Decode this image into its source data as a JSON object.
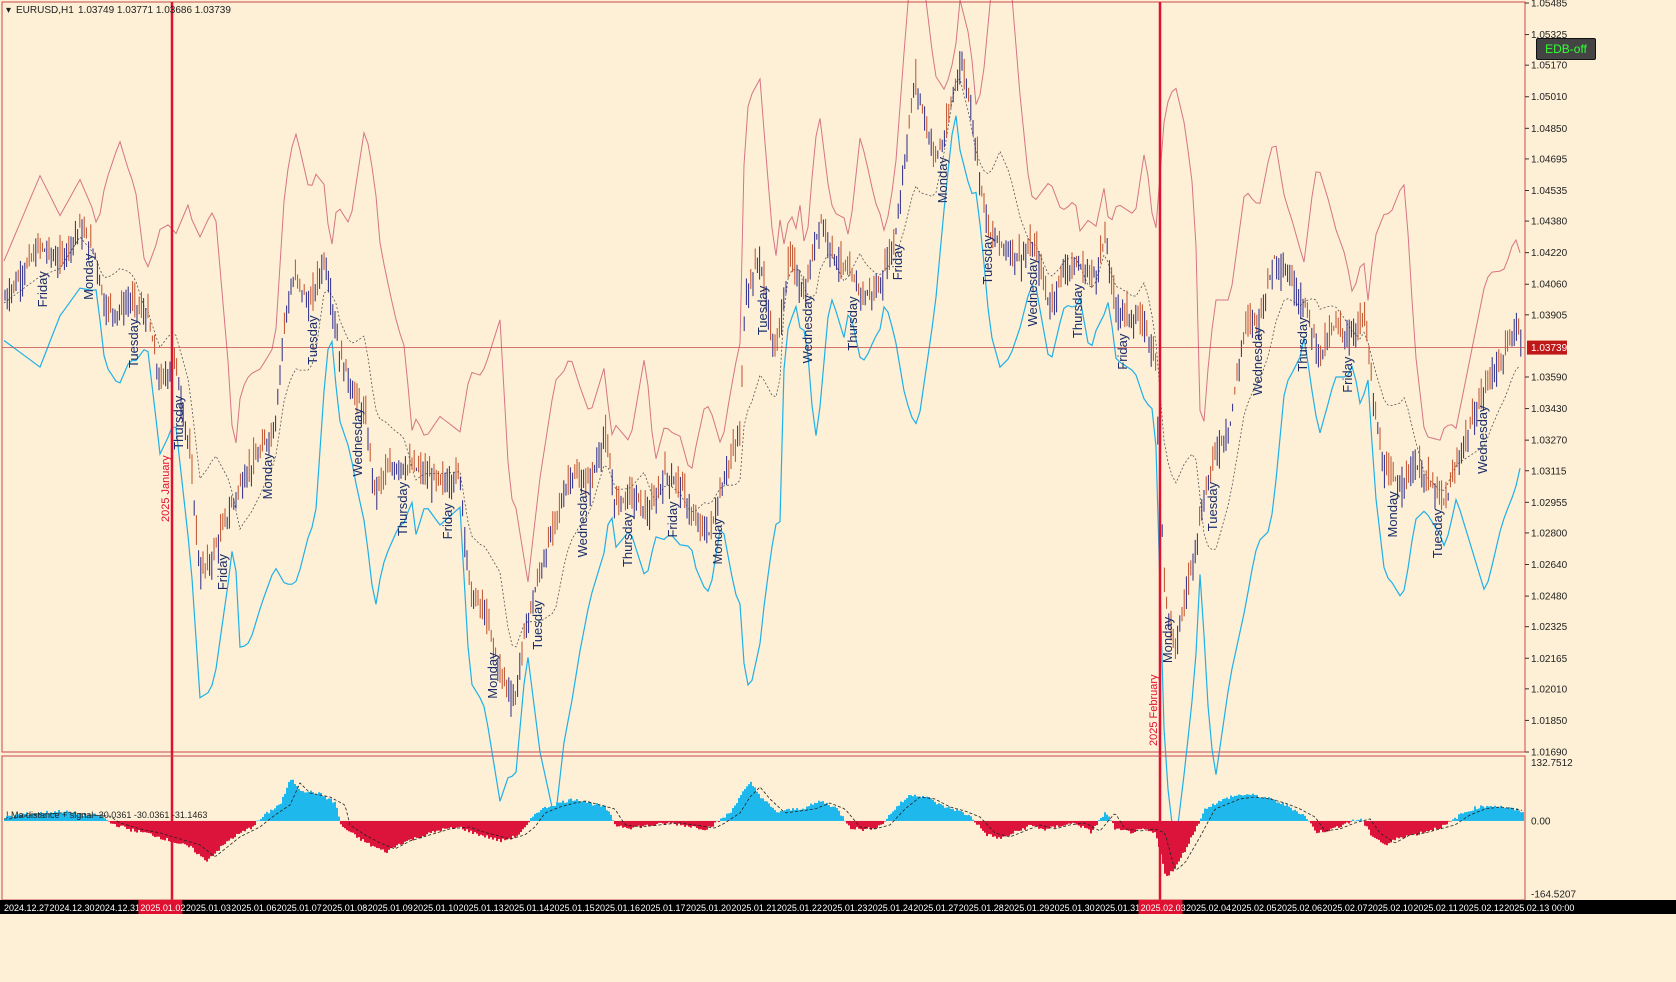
{
  "window": {
    "symbol_title": "EURUSD,H1",
    "ohlc": "1.03749 1.03771 1.03686 1.03739"
  },
  "button": {
    "label": "EDB-off"
  },
  "colors": {
    "background": "#fdf0d6",
    "grid_border": "#c84a4a",
    "bull_candle": "#2a2a8a",
    "bear_candle": "#c0502a",
    "upper_band": "#c44060",
    "lower_band": "#1fb0e8",
    "hist_positive": "#1fb8ec",
    "hist_negative": "#dc143c",
    "separator": "#e01030",
    "day_label": "#1a2d6a",
    "price_marker_bg": "#c01818",
    "axis_bg": "#000000",
    "axis_text": "#ffffff"
  },
  "chart_data": [
    {
      "type": "candlestick",
      "title": "EURUSD,H1 1.03749 1.03771 1.03686 1.03739",
      "y_ticks": [
        "1.05485",
        "1.05325",
        "1.05170",
        "1.05010",
        "1.04850",
        "1.04695",
        "1.04535",
        "1.04380",
        "1.04220",
        "1.04060",
        "1.03905",
        "1.03739",
        "1.03590",
        "1.03430",
        "1.03270",
        "1.03115",
        "1.02955",
        "1.02800",
        "1.02640",
        "1.02480",
        "1.02325",
        "1.02165",
        "1.02010",
        "1.01850",
        "1.01690"
      ],
      "ylim": [
        1.0169,
        1.0549
      ],
      "current_price": "1.03739",
      "x_range": [
        "2024.12.27",
        "2025.02.13 00:00"
      ],
      "close_path_anchors": [
        [
          0,
          1.0395
        ],
        [
          20,
          1.041
        ],
        [
          40,
          1.0425
        ],
        [
          60,
          1.0418
        ],
        [
          80,
          1.0435
        ],
        [
          95,
          1.0422
        ],
        [
          105,
          1.0395
        ],
        [
          118,
          1.0392
        ],
        [
          130,
          1.0398
        ],
        [
          148,
          1.039
        ],
        [
          160,
          1.0355
        ],
        [
          175,
          1.0368
        ],
        [
          190,
          1.032
        ],
        [
          200,
          1.026
        ],
        [
          210,
          1.0265
        ],
        [
          225,
          1.0285
        ],
        [
          245,
          1.031
        ],
        [
          260,
          1.032
        ],
        [
          275,
          1.0335
        ],
        [
          285,
          1.039
        ],
        [
          295,
          1.041
        ],
        [
          310,
          1.0395
        ],
        [
          325,
          1.042
        ],
        [
          340,
          1.037
        ],
        [
          355,
          1.035
        ],
        [
          365,
          1.034
        ],
        [
          375,
          1.03
        ],
        [
          385,
          1.031
        ],
        [
          400,
          1.0315
        ],
        [
          420,
          1.0312
        ],
        [
          440,
          1.0305
        ],
        [
          460,
          1.031
        ],
        [
          470,
          1.025
        ],
        [
          485,
          1.024
        ],
        [
          500,
          1.021
        ],
        [
          515,
          1.0195
        ],
        [
          525,
          1.023
        ],
        [
          540,
          1.026
        ],
        [
          555,
          1.0285
        ],
        [
          570,
          1.031
        ],
        [
          590,
          1.0305
        ],
        [
          605,
          1.033
        ],
        [
          615,
          1.0295
        ],
        [
          630,
          1.03
        ],
        [
          650,
          1.029
        ],
        [
          665,
          1.031
        ],
        [
          680,
          1.0305
        ],
        [
          695,
          1.0285
        ],
        [
          710,
          1.028
        ],
        [
          725,
          1.031
        ],
        [
          740,
          1.033
        ],
        [
          745,
          1.04
        ],
        [
          760,
          1.042
        ],
        [
          775,
          1.037
        ],
        [
          790,
          1.042
        ],
        [
          805,
          1.04
        ],
        [
          820,
          1.044
        ],
        [
          835,
          1.042
        ],
        [
          850,
          1.041
        ],
        [
          865,
          1.04
        ],
        [
          880,
          1.0405
        ],
        [
          895,
          1.043
        ],
        [
          905,
          1.047
        ],
        [
          915,
          1.051
        ],
        [
          925,
          1.049
        ],
        [
          935,
          1.047
        ],
        [
          945,
          1.048
        ],
        [
          960,
          1.052
        ],
        [
          970,
          1.05
        ],
        [
          980,
          1.046
        ],
        [
          990,
          1.043
        ],
        [
          1005,
          1.0425
        ],
        [
          1020,
          1.042
        ],
        [
          1035,
          1.0425
        ],
        [
          1050,
          1.0395
        ],
        [
          1065,
          1.0415
        ],
        [
          1080,
          1.0415
        ],
        [
          1095,
          1.041
        ],
        [
          1105,
          1.043
        ],
        [
          1115,
          1.0395
        ],
        [
          1130,
          1.039
        ],
        [
          1145,
          1.0385
        ],
        [
          1155,
          1.037
        ],
        [
          1165,
          1.025
        ],
        [
          1175,
          1.022
        ],
        [
          1190,
          1.026
        ],
        [
          1205,
          1.03
        ],
        [
          1215,
          1.032
        ],
        [
          1230,
          1.0335
        ],
        [
          1245,
          1.0385
        ],
        [
          1260,
          1.039
        ],
        [
          1275,
          1.042
        ],
        [
          1290,
          1.041
        ],
        [
          1305,
          1.0395
        ],
        [
          1320,
          1.037
        ],
        [
          1335,
          1.0385
        ],
        [
          1350,
          1.038
        ],
        [
          1365,
          1.039
        ],
        [
          1375,
          1.034
        ],
        [
          1385,
          1.031
        ],
        [
          1400,
          1.0305
        ],
        [
          1415,
          1.0315
        ],
        [
          1430,
          1.0305
        ],
        [
          1445,
          1.0295
        ],
        [
          1460,
          1.032
        ],
        [
          1475,
          1.034
        ],
        [
          1490,
          1.036
        ],
        [
          1505,
          1.037
        ],
        [
          1515,
          1.0385
        ],
        [
          1525,
          1.038
        ]
      ],
      "day_labels": [
        {
          "text": "Friday",
          "x": 42
        },
        {
          "text": "Monday",
          "x": 88
        },
        {
          "text": "Tuesday",
          "x": 133
        },
        {
          "text": "Thursday",
          "x": 178
        },
        {
          "text": "Friday",
          "x": 222
        },
        {
          "text": "Monday",
          "x": 267
        },
        {
          "text": "Tuesday",
          "x": 312
        },
        {
          "text": "Wednesday",
          "x": 357
        },
        {
          "text": "Thursday",
          "x": 402
        },
        {
          "text": "Friday",
          "x": 447
        },
        {
          "text": "Monday",
          "x": 492
        },
        {
          "text": "Tuesday",
          "x": 537
        },
        {
          "text": "Wednesday",
          "x": 582
        },
        {
          "text": "Thursday",
          "x": 627
        },
        {
          "text": "Friday",
          "x": 672
        },
        {
          "text": "Monday",
          "x": 717
        },
        {
          "text": "Tuesday",
          "x": 762
        },
        {
          "text": "Wednesday",
          "x": 807
        },
        {
          "text": "Thursday",
          "x": 852
        },
        {
          "text": "Friday",
          "x": 897
        },
        {
          "text": "Monday",
          "x": 942
        },
        {
          "text": "Tuesday",
          "x": 987
        },
        {
          "text": "Wednesday",
          "x": 1032
        },
        {
          "text": "Thursday",
          "x": 1077
        },
        {
          "text": "Friday",
          "x": 1122
        },
        {
          "text": "Monday",
          "x": 1167
        },
        {
          "text": "Tuesday",
          "x": 1212
        },
        {
          "text": "Wednesday",
          "x": 1257
        },
        {
          "text": "Thursday",
          "x": 1302
        },
        {
          "text": "Friday",
          "x": 1347
        },
        {
          "text": "Monday",
          "x": 1392
        },
        {
          "text": "Tuesday",
          "x": 1437
        },
        {
          "text": "Wednesday",
          "x": 1482
        }
      ],
      "month_separators": [
        {
          "label": "2025 January",
          "x": 172
        },
        {
          "label": "2025 February",
          "x": 1160
        }
      ]
    },
    {
      "type": "histogram",
      "title": "! Ma distance + signal -30.0361 -30.0361 -31.1463",
      "y_ticks": [
        "132.7512",
        "0.00",
        "-164.5207"
      ],
      "ylim": [
        -164.5207,
        132.7512
      ],
      "bar_anchors": [
        [
          0,
          5
        ],
        [
          20,
          15
        ],
        [
          40,
          18
        ],
        [
          60,
          22
        ],
        [
          80,
          15
        ],
        [
          100,
          12
        ],
        [
          110,
          -5
        ],
        [
          130,
          -20
        ],
        [
          150,
          -30
        ],
        [
          170,
          -45
        ],
        [
          190,
          -60
        ],
        [
          205,
          -90
        ],
        [
          215,
          -70
        ],
        [
          230,
          -40
        ],
        [
          250,
          -15
        ],
        [
          265,
          15
        ],
        [
          280,
          40
        ],
        [
          290,
          95
        ],
        [
          300,
          70
        ],
        [
          320,
          60
        ],
        [
          335,
          40
        ],
        [
          340,
          -10
        ],
        [
          355,
          -35
        ],
        [
          370,
          -55
        ],
        [
          385,
          -70
        ],
        [
          400,
          -50
        ],
        [
          420,
          -35
        ],
        [
          440,
          -20
        ],
        [
          460,
          -15
        ],
        [
          470,
          -25
        ],
        [
          485,
          -35
        ],
        [
          500,
          -45
        ],
        [
          515,
          -35
        ],
        [
          525,
          -15
        ],
        [
          535,
          20
        ],
        [
          550,
          35
        ],
        [
          565,
          45
        ],
        [
          575,
          50
        ],
        [
          590,
          40
        ],
        [
          605,
          30
        ],
        [
          615,
          -10
        ],
        [
          630,
          -15
        ],
        [
          650,
          -10
        ],
        [
          670,
          -5
        ],
        [
          690,
          -12
        ],
        [
          705,
          -18
        ],
        [
          715,
          -5
        ],
        [
          730,
          20
        ],
        [
          740,
          60
        ],
        [
          750,
          85
        ],
        [
          760,
          55
        ],
        [
          775,
          20
        ],
        [
          790,
          25
        ],
        [
          805,
          30
        ],
        [
          820,
          45
        ],
        [
          835,
          30
        ],
        [
          850,
          -15
        ],
        [
          865,
          -20
        ],
        [
          880,
          -10
        ],
        [
          895,
          30
        ],
        [
          910,
          60
        ],
        [
          925,
          55
        ],
        [
          940,
          35
        ],
        [
          955,
          25
        ],
        [
          970,
          10
        ],
        [
          985,
          -30
        ],
        [
          1000,
          -40
        ],
        [
          1015,
          -25
        ],
        [
          1030,
          -10
        ],
        [
          1045,
          -20
        ],
        [
          1060,
          -10
        ],
        [
          1075,
          -5
        ],
        [
          1090,
          -25
        ],
        [
          1105,
          20
        ],
        [
          1115,
          -20
        ],
        [
          1130,
          -25
        ],
        [
          1145,
          -20
        ],
        [
          1155,
          -30
        ],
        [
          1165,
          -125
        ],
        [
          1175,
          -105
        ],
        [
          1190,
          -40
        ],
        [
          1205,
          30
        ],
        [
          1215,
          40
        ],
        [
          1230,
          55
        ],
        [
          1245,
          60
        ],
        [
          1260,
          55
        ],
        [
          1275,
          45
        ],
        [
          1290,
          30
        ],
        [
          1305,
          10
        ],
        [
          1315,
          -25
        ],
        [
          1330,
          -20
        ],
        [
          1345,
          -5
        ],
        [
          1360,
          5
        ],
        [
          1370,
          -30
        ],
        [
          1385,
          -55
        ],
        [
          1400,
          -35
        ],
        [
          1415,
          -30
        ],
        [
          1430,
          -20
        ],
        [
          1445,
          -10
        ],
        [
          1460,
          15
        ],
        [
          1475,
          30
        ],
        [
          1490,
          35
        ],
        [
          1505,
          30
        ],
        [
          1515,
          25
        ],
        [
          1525,
          20
        ]
      ]
    }
  ],
  "time_axis": {
    "labels": [
      "2024.12.27",
      "2024.12.30",
      "2024.12.31",
      "2025.01.02",
      "2025.01.03",
      "2025.01.06",
      "2025.01.07",
      "2025.01.08",
      "2025.01.09",
      "2025.01.10",
      "2025.01.13",
      "2025.01.14",
      "2025.01.15",
      "2025.01.16",
      "2025.01.17",
      "2025.01.20",
      "2025.01.21",
      "2025.01.22",
      "2025.01.23",
      "2025.01.24",
      "2025.01.27",
      "2025.01.28",
      "2025.01.29",
      "2025.01.30",
      "2025.01.31",
      "2025.02.03",
      "2025.02.04",
      "2025.02.05",
      "2025.02.06",
      "2025.02.07",
      "2025.02.10",
      "2025.02.11",
      "2025.02.12",
      "2025.02.13 00:00"
    ],
    "highlighted": [
      "2025.01.02",
      "2025.02.03"
    ]
  }
}
